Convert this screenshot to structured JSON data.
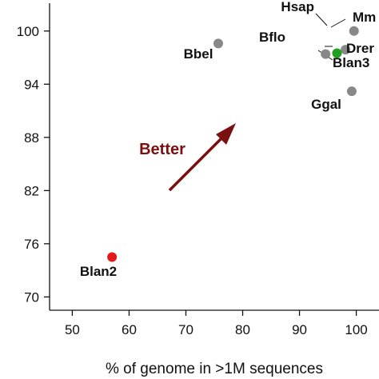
{
  "chart_data": {
    "type": "scatter",
    "title": "",
    "xlabel": "% of genome in >1M sequences",
    "ylabel": "",
    "xlim": [
      46,
      104
    ],
    "ylim": [
      68.5,
      103.5
    ],
    "grid": false,
    "x_ticks": [
      50,
      60,
      70,
      80,
      90,
      100
    ],
    "y_ticks": [
      70,
      76,
      82,
      88,
      94,
      100
    ],
    "x_tick_labels": [
      "50",
      "60",
      "70",
      "80",
      "90",
      "100"
    ],
    "y_tick_labels": [
      "70",
      "76",
      "82",
      "88",
      "94",
      "100"
    ],
    "points": [
      {
        "label": "Blan2",
        "x": 57,
        "y": 74.5,
        "color": "#e31a1c"
      },
      {
        "label": "Bbel",
        "x": 75.7,
        "y": 98.6,
        "color": "#888888"
      },
      {
        "label": "Hsap",
        "x": 99.6,
        "y": 100,
        "color": "#888888"
      },
      {
        "label": "Mm",
        "x": 99.6,
        "y": 100,
        "color": "#888888"
      },
      {
        "label": "Bflo",
        "x": 94.6,
        "y": 97.4,
        "color": "#888888"
      },
      {
        "label": "Drer",
        "x": 98.1,
        "y": 97.9,
        "color": "#888888"
      },
      {
        "label": "Blan3",
        "x": 96.6,
        "y": 97.5,
        "color": "#1fa01f"
      },
      {
        "label": "Ggal",
        "x": 99.2,
        "y": 93.2,
        "color": "#888888"
      }
    ],
    "annotation": {
      "text": "Better",
      "color": "#7a1010"
    }
  }
}
